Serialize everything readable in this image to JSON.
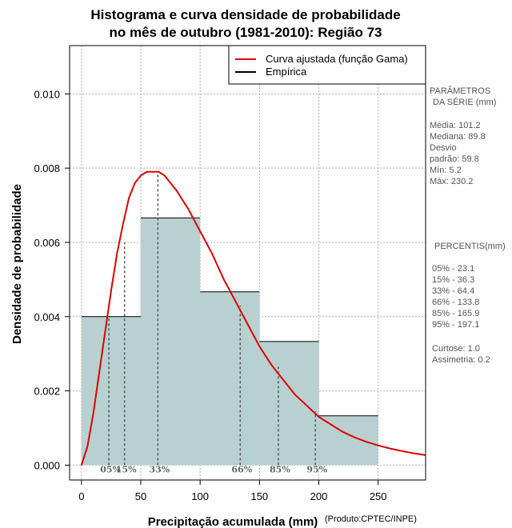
{
  "chart_data": {
    "type": "histogram",
    "title_line1": "Histograma e curva densidade de probabilidade",
    "title_line2": "no mês de outubro (1981-2010): Região 73",
    "xlabel": "Precipitação acumulada (mm)",
    "ylabel": "Densidade de probabilidade",
    "credit": "(Produto:CPTEC/INPE)",
    "xlim": [
      -10,
      290
    ],
    "ylim": [
      -0.0004,
      0.0113
    ],
    "x_ticks": [
      0,
      50,
      100,
      150,
      200,
      250
    ],
    "y_ticks": [
      0.0,
      0.002,
      0.004,
      0.006,
      0.008,
      0.01
    ],
    "y_tick_labels": [
      "0.000",
      "0.002",
      "0.004",
      "0.006",
      "0.008",
      "0.010"
    ],
    "bins": [
      {
        "start": 0,
        "end": 50,
        "density": 0.004
      },
      {
        "start": 50,
        "end": 100,
        "density": 0.00666
      },
      {
        "start": 100,
        "end": 150,
        "density": 0.00467
      },
      {
        "start": 150,
        "end": 200,
        "density": 0.00333
      },
      {
        "start": 200,
        "end": 250,
        "density": 0.00133
      }
    ],
    "fitted_curve": {
      "name": "Curva ajustada (função Gama)",
      "color": "#e00000",
      "x": [
        0,
        5,
        10,
        15,
        20,
        25,
        30,
        35,
        40,
        45,
        50,
        55,
        60,
        65,
        70,
        75,
        80,
        90,
        100,
        110,
        120,
        130,
        140,
        150,
        160,
        170,
        180,
        190,
        200,
        210,
        220,
        230,
        240,
        250,
        260,
        270,
        280,
        290
      ],
      "y": [
        0.0,
        0.0005,
        0.0014,
        0.0025,
        0.0036,
        0.0047,
        0.0057,
        0.0065,
        0.0072,
        0.0076,
        0.0078,
        0.0079,
        0.0079,
        0.0079,
        0.0078,
        0.0076,
        0.0074,
        0.0069,
        0.0063,
        0.0057,
        0.005,
        0.0044,
        0.0038,
        0.0032,
        0.0027,
        0.0023,
        0.0019,
        0.0016,
        0.0013,
        0.0011,
        0.0009,
        0.00075,
        0.00063,
        0.00053,
        0.00045,
        0.00038,
        0.00032,
        0.00027
      ]
    },
    "empirical": {
      "name": "Empírica",
      "color": "#000000"
    },
    "bar_color": "#b8d0d0",
    "percentile_markers": [
      {
        "label": "05%",
        "x": 23.1,
        "y": 0.004
      },
      {
        "label": "15%",
        "x": 36.3,
        "y": 0.006
      },
      {
        "label": "33%",
        "x": 64.4,
        "y": 0.0079
      },
      {
        "label": "66%",
        "x": 133.8,
        "y": 0.0043
      },
      {
        "label": "85%",
        "x": 165.9,
        "y": 0.0027
      },
      {
        "label": "95%",
        "x": 197.1,
        "y": 0.00145
      }
    ],
    "legend_position": "top-right"
  },
  "side_panel": {
    "params_title_1": "PARÂMETROS",
    "params_title_2": "DA SÉRIE (mm)",
    "params": [
      "Média:  101.2",
      "Mediana:  89.8",
      "Desvio",
      "padrão:  59.8",
      "Mín:  5.2",
      "Máx:  230.2"
    ],
    "percentis_title": "PERCENTIS(mm)",
    "percentis": [
      "05% -  23.1",
      "15% -  36.3",
      "33% -  64.4",
      "66% -  133.8",
      "85% -  165.9",
      "95% -  197.1"
    ],
    "curtose": "Curtose:  1.0",
    "assimetria": "Assimetria:  0.2"
  }
}
